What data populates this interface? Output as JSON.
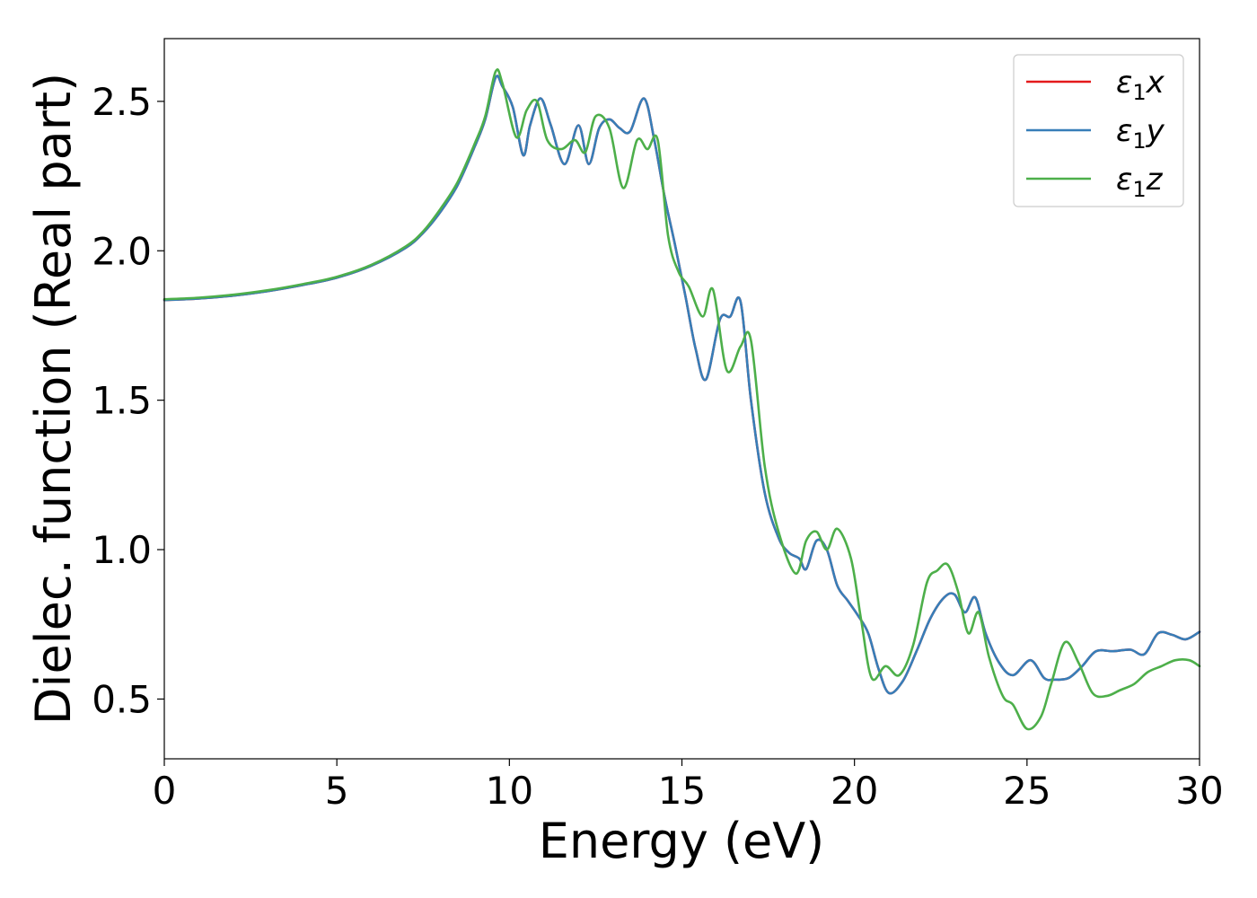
{
  "chart_data": {
    "type": "line",
    "xlabel": "Energy (eV)",
    "ylabel": "Dielec. function (Real part)",
    "xlim": [
      0,
      30
    ],
    "ylim": [
      0.3,
      2.71
    ],
    "xticks": [
      "0",
      "5",
      "10",
      "15",
      "20",
      "25",
      "30"
    ],
    "yticks": [
      "0.5",
      "1.0",
      "1.5",
      "2.0",
      "2.5"
    ],
    "grid": false,
    "legend_position": "top-right",
    "series": [
      {
        "name": "ε1x",
        "legend_base": "ε",
        "legend_sub": "1",
        "legend_var": "x",
        "color": "#e41a1c",
        "x": [
          0,
          1,
          2,
          3,
          4,
          5,
          6,
          7,
          7.5,
          8,
          8.5,
          9,
          9.3,
          9.6,
          9.8,
          10.1,
          10.4,
          10.6,
          10.9,
          11.2,
          11.6,
          12,
          12.3,
          12.6,
          12.9,
          13.2,
          13.5,
          13.9,
          14.2,
          14.5,
          14.8,
          15.1,
          15.4,
          15.7,
          16.1,
          16.4,
          16.7,
          17,
          17.4,
          17.8,
          18.1,
          18.4,
          18.6,
          18.9,
          19.2,
          19.5,
          19.8,
          20.1,
          20.4,
          20.7,
          21,
          21.4,
          21.8,
          22.2,
          22.6,
          22.9,
          23.2,
          23.5,
          23.8,
          24.2,
          24.6,
          25.1,
          25.5,
          25.8,
          26.2,
          26.6,
          27,
          27.5,
          28,
          28.4,
          28.8,
          29.2,
          29.6,
          30
        ],
        "values": [
          1.835,
          1.84,
          1.85,
          1.865,
          1.885,
          1.91,
          1.95,
          2.01,
          2.06,
          2.13,
          2.22,
          2.35,
          2.44,
          2.58,
          2.55,
          2.48,
          2.32,
          2.42,
          2.51,
          2.42,
          2.29,
          2.42,
          2.29,
          2.41,
          2.44,
          2.41,
          2.4,
          2.51,
          2.37,
          2.18,
          2.02,
          1.85,
          1.67,
          1.57,
          1.77,
          1.78,
          1.83,
          1.5,
          1.19,
          1.04,
          0.99,
          0.97,
          0.935,
          1.03,
          1.0,
          0.88,
          0.83,
          0.78,
          0.72,
          0.6,
          0.52,
          0.56,
          0.66,
          0.77,
          0.84,
          0.85,
          0.79,
          0.84,
          0.72,
          0.62,
          0.58,
          0.63,
          0.57,
          0.565,
          0.57,
          0.61,
          0.66,
          0.66,
          0.665,
          0.65,
          0.72,
          0.715,
          0.7,
          0.725
        ]
      },
      {
        "name": "ε1y",
        "legend_base": "ε",
        "legend_sub": "1",
        "legend_var": "y",
        "color": "#377eb8",
        "x": [
          0,
          1,
          2,
          3,
          4,
          5,
          6,
          7,
          7.5,
          8,
          8.5,
          9,
          9.3,
          9.6,
          9.8,
          10.1,
          10.4,
          10.6,
          10.9,
          11.2,
          11.6,
          12,
          12.3,
          12.6,
          12.9,
          13.2,
          13.5,
          13.9,
          14.2,
          14.5,
          14.8,
          15.1,
          15.4,
          15.7,
          16.1,
          16.4,
          16.7,
          17,
          17.4,
          17.8,
          18.1,
          18.4,
          18.6,
          18.9,
          19.2,
          19.5,
          19.8,
          20.1,
          20.4,
          20.7,
          21,
          21.4,
          21.8,
          22.2,
          22.6,
          22.9,
          23.2,
          23.5,
          23.8,
          24.2,
          24.6,
          25.1,
          25.5,
          25.8,
          26.2,
          26.6,
          27,
          27.5,
          28,
          28.4,
          28.8,
          29.2,
          29.6,
          30
        ],
        "values": [
          1.835,
          1.84,
          1.85,
          1.865,
          1.885,
          1.91,
          1.95,
          2.01,
          2.06,
          2.13,
          2.22,
          2.35,
          2.44,
          2.58,
          2.55,
          2.48,
          2.32,
          2.42,
          2.51,
          2.42,
          2.29,
          2.42,
          2.29,
          2.41,
          2.44,
          2.41,
          2.4,
          2.51,
          2.37,
          2.18,
          2.02,
          1.85,
          1.67,
          1.57,
          1.77,
          1.78,
          1.83,
          1.5,
          1.19,
          1.04,
          0.99,
          0.97,
          0.935,
          1.03,
          1.0,
          0.88,
          0.83,
          0.78,
          0.72,
          0.6,
          0.52,
          0.56,
          0.66,
          0.77,
          0.84,
          0.85,
          0.79,
          0.84,
          0.72,
          0.62,
          0.58,
          0.63,
          0.57,
          0.565,
          0.57,
          0.61,
          0.66,
          0.66,
          0.665,
          0.65,
          0.72,
          0.715,
          0.7,
          0.725
        ]
      },
      {
        "name": "ε1z",
        "legend_base": "ε",
        "legend_sub": "1",
        "legend_var": "z",
        "color": "#4daf4a",
        "x": [
          0,
          1,
          2,
          3,
          4,
          5,
          6,
          7,
          7.5,
          8,
          8.5,
          9,
          9.3,
          9.6,
          9.8,
          10.2,
          10.5,
          10.8,
          11.1,
          11.5,
          11.9,
          12.2,
          12.5,
          12.9,
          13.3,
          13.7,
          14.0,
          14.3,
          14.6,
          14.9,
          15.2,
          15.6,
          15.9,
          16.3,
          16.7,
          17.0,
          17.4,
          17.8,
          18.3,
          18.6,
          18.9,
          19.2,
          19.5,
          19.9,
          20.2,
          20.5,
          20.9,
          21.3,
          21.7,
          22.1,
          22.4,
          22.7,
          23.0,
          23.3,
          23.6,
          23.9,
          24.3,
          24.6,
          25.0,
          25.4,
          25.7,
          26.1,
          26.5,
          26.9,
          27.3,
          27.7,
          28.1,
          28.5,
          28.9,
          29.3,
          29.7,
          30
        ],
        "values": [
          1.838,
          1.843,
          1.853,
          1.868,
          1.888,
          1.913,
          1.953,
          2.015,
          2.065,
          2.14,
          2.23,
          2.36,
          2.45,
          2.6,
          2.56,
          2.38,
          2.47,
          2.5,
          2.37,
          2.34,
          2.37,
          2.33,
          2.45,
          2.41,
          2.21,
          2.37,
          2.34,
          2.37,
          2.05,
          1.93,
          1.88,
          1.78,
          1.87,
          1.6,
          1.68,
          1.7,
          1.28,
          1.06,
          0.92,
          1.03,
          1.06,
          1.0,
          1.07,
          0.97,
          0.76,
          0.57,
          0.61,
          0.58,
          0.68,
          0.89,
          0.93,
          0.95,
          0.86,
          0.72,
          0.79,
          0.64,
          0.51,
          0.48,
          0.4,
          0.44,
          0.55,
          0.69,
          0.62,
          0.52,
          0.51,
          0.53,
          0.55,
          0.59,
          0.61,
          0.63,
          0.63,
          0.61
        ]
      }
    ]
  }
}
